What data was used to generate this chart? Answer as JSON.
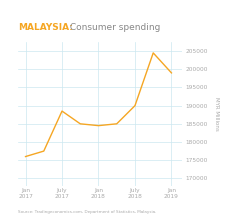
{
  "title_bold": "MALAYSIA:",
  "title_regular": " Consumer spending",
  "ylabel": "MYR Millions",
  "source": "Source: Tradingeconomics.com, Department of Statistics, Malaysia.",
  "x_tick_positions": [
    0,
    2,
    4,
    6,
    8
  ],
  "x_labels": [
    "Jan\n2017",
    "July\n2017",
    "Jan\n2018",
    "July\n2018",
    "Jan\n2019"
  ],
  "y_ticks": [
    170000,
    175000,
    180000,
    185000,
    190000,
    195000,
    200000,
    205000
  ],
  "ylim": [
    168000,
    207500
  ],
  "xlim": [
    -0.4,
    8.6
  ],
  "data_x": [
    0,
    1,
    2,
    3,
    4,
    5,
    6,
    7,
    8
  ],
  "data_y": [
    176000,
    177500,
    188500,
    185000,
    184500,
    185000,
    190000,
    204500,
    199000
  ],
  "line_color": "#f5a623",
  "grid_color": "#cce8f0",
  "title_color_bold": "#f5a623",
  "title_color_regular": "#888888",
  "tick_color": "#aaaaaa",
  "bg_color": "#ffffff",
  "source_color": "#aaaaaa",
  "title_fontsize": 6.5,
  "tick_fontsize": 4.2,
  "source_fontsize": 3.0,
  "ylabel_fontsize": 4.0,
  "line_width": 1.0
}
